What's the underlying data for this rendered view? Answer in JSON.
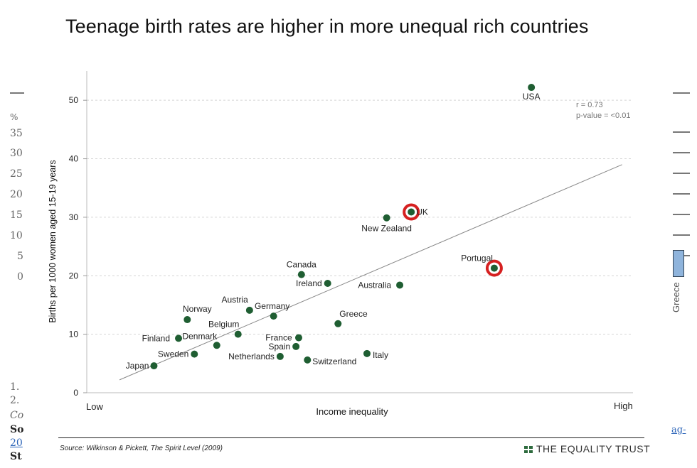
{
  "title": "Teenage birth rates are higher in more unequal rich countries",
  "source": "Source: Wilkinson & Pickett, The Spirit Level (2009)",
  "brand": "THE EQUALITY TRUST",
  "colors": {
    "point": "#1f5e32",
    "highlight": "#d62020",
    "trend": "#888888",
    "grid": "#d5d5d5"
  },
  "background_left": {
    "ticks": [
      "%",
      "35",
      "30",
      "25",
      "20",
      "15",
      "10",
      "5",
      "0"
    ],
    "notes": [
      "1.",
      "2.",
      "Co",
      "So",
      "20",
      "St"
    ]
  },
  "background_right": {
    "label": "Greece",
    "link": "ag-"
  },
  "chart_data": {
    "type": "scatter",
    "title": "Teenage birth rates are higher in more unequal rich countries",
    "xlabel": "Income inequality",
    "ylabel": "Births per 1000 women aged 15-19 years",
    "x_tick_labels": {
      "low": "Low",
      "high": "High"
    },
    "ylim": [
      0,
      55
    ],
    "xlim": [
      0,
      1
    ],
    "y_ticks": [
      0,
      10,
      20,
      30,
      40,
      50
    ],
    "grid": true,
    "annotation": {
      "r": "r = 0.73",
      "p": "p-value = <0.01"
    },
    "trend_line": {
      "x": [
        0.06,
        0.98
      ],
      "y": [
        2.2,
        39.0
      ]
    },
    "points": [
      {
        "label": "USA",
        "x": 0.814,
        "y": 52.2
      },
      {
        "label": "UK",
        "x": 0.594,
        "y": 30.9,
        "highlight": true
      },
      {
        "label": "New Zealand",
        "x": 0.549,
        "y": 29.9
      },
      {
        "label": "Portugal",
        "x": 0.746,
        "y": 21.3,
        "highlight": true
      },
      {
        "label": "Canada",
        "x": 0.393,
        "y": 20.2
      },
      {
        "label": "Ireland",
        "x": 0.441,
        "y": 18.7
      },
      {
        "label": "Australia",
        "x": 0.573,
        "y": 18.4
      },
      {
        "label": "Greece",
        "x": 0.46,
        "y": 11.8
      },
      {
        "label": "Austria",
        "x": 0.298,
        "y": 14.1
      },
      {
        "label": "Germany",
        "x": 0.342,
        "y": 13.1
      },
      {
        "label": "Norway",
        "x": 0.184,
        "y": 12.5
      },
      {
        "label": "Belgium",
        "x": 0.277,
        "y": 10.0
      },
      {
        "label": "France",
        "x": 0.388,
        "y": 9.4
      },
      {
        "label": "Finland",
        "x": 0.168,
        "y": 9.3
      },
      {
        "label": "Denmark",
        "x": 0.238,
        "y": 8.1
      },
      {
        "label": "Spain",
        "x": 0.383,
        "y": 7.9
      },
      {
        "label": "Sweden",
        "x": 0.197,
        "y": 6.6
      },
      {
        "label": "Italy",
        "x": 0.513,
        "y": 6.7
      },
      {
        "label": "Netherlands",
        "x": 0.354,
        "y": 6.2
      },
      {
        "label": "Switzerland",
        "x": 0.404,
        "y": 5.6
      },
      {
        "label": "Japan",
        "x": 0.123,
        "y": 4.6
      }
    ]
  }
}
